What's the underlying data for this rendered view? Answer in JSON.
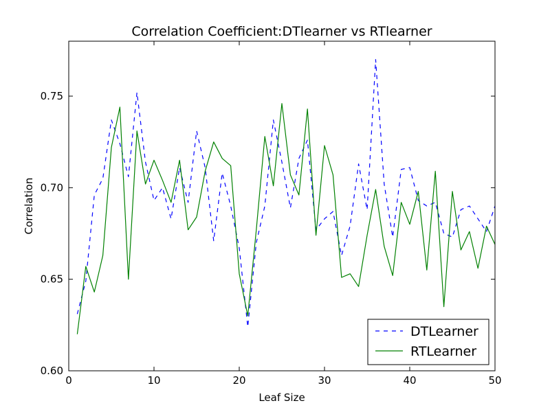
{
  "chart_data": {
    "type": "line",
    "title": "Correlation Coefficient:DTlearner vs RTlearner",
    "xlabel": "Leaf Size",
    "ylabel": "Correlation",
    "xlim": [
      0,
      50
    ],
    "ylim": [
      0.6,
      0.78
    ],
    "xticks": [
      0,
      10,
      20,
      30,
      40,
      50
    ],
    "yticks": [
      0.6,
      0.65,
      0.7,
      0.75
    ],
    "xtick_labels": [
      "0",
      "10",
      "20",
      "30",
      "40",
      "50"
    ],
    "ytick_labels": [
      "0.60",
      "0.65",
      "0.70",
      "0.75"
    ],
    "grid": false,
    "legend_position": "bottom-right",
    "x": [
      1,
      2,
      3,
      4,
      5,
      6,
      7,
      8,
      9,
      10,
      11,
      12,
      13,
      14,
      15,
      16,
      17,
      18,
      19,
      20,
      21,
      22,
      23,
      24,
      25,
      26,
      27,
      28,
      29,
      30,
      31,
      32,
      33,
      34,
      35,
      36,
      37,
      38,
      39,
      40,
      41,
      42,
      43,
      44,
      45,
      46,
      47,
      48,
      49,
      50
    ],
    "series": [
      {
        "name": "DTLearner",
        "color": "#0000ff",
        "style": "dashed",
        "values": [
          0.631,
          0.649,
          0.696,
          0.705,
          0.737,
          0.724,
          0.706,
          0.752,
          0.714,
          0.693,
          0.7,
          0.683,
          0.711,
          0.692,
          0.731,
          0.711,
          0.671,
          0.708,
          0.69,
          0.667,
          0.624,
          0.67,
          0.69,
          0.737,
          0.714,
          0.689,
          0.716,
          0.726,
          0.677,
          0.683,
          0.687,
          0.663,
          0.679,
          0.713,
          0.688,
          0.77,
          0.702,
          0.673,
          0.71,
          0.711,
          0.693,
          0.69,
          0.692,
          0.675,
          0.673,
          0.688,
          0.69,
          0.683,
          0.676,
          0.69
        ]
      },
      {
        "name": "RTLearner",
        "color": "#008000",
        "style": "solid",
        "values": [
          0.62,
          0.657,
          0.643,
          0.663,
          0.722,
          0.744,
          0.65,
          0.731,
          0.702,
          0.715,
          0.704,
          0.692,
          0.715,
          0.677,
          0.684,
          0.709,
          0.725,
          0.716,
          0.712,
          0.653,
          0.63,
          0.677,
          0.728,
          0.701,
          0.746,
          0.707,
          0.696,
          0.743,
          0.674,
          0.723,
          0.707,
          0.651,
          0.653,
          0.646,
          0.674,
          0.699,
          0.668,
          0.652,
          0.692,
          0.68,
          0.698,
          0.655,
          0.709,
          0.635,
          0.698,
          0.666,
          0.676,
          0.656,
          0.679,
          0.669
        ]
      }
    ]
  }
}
